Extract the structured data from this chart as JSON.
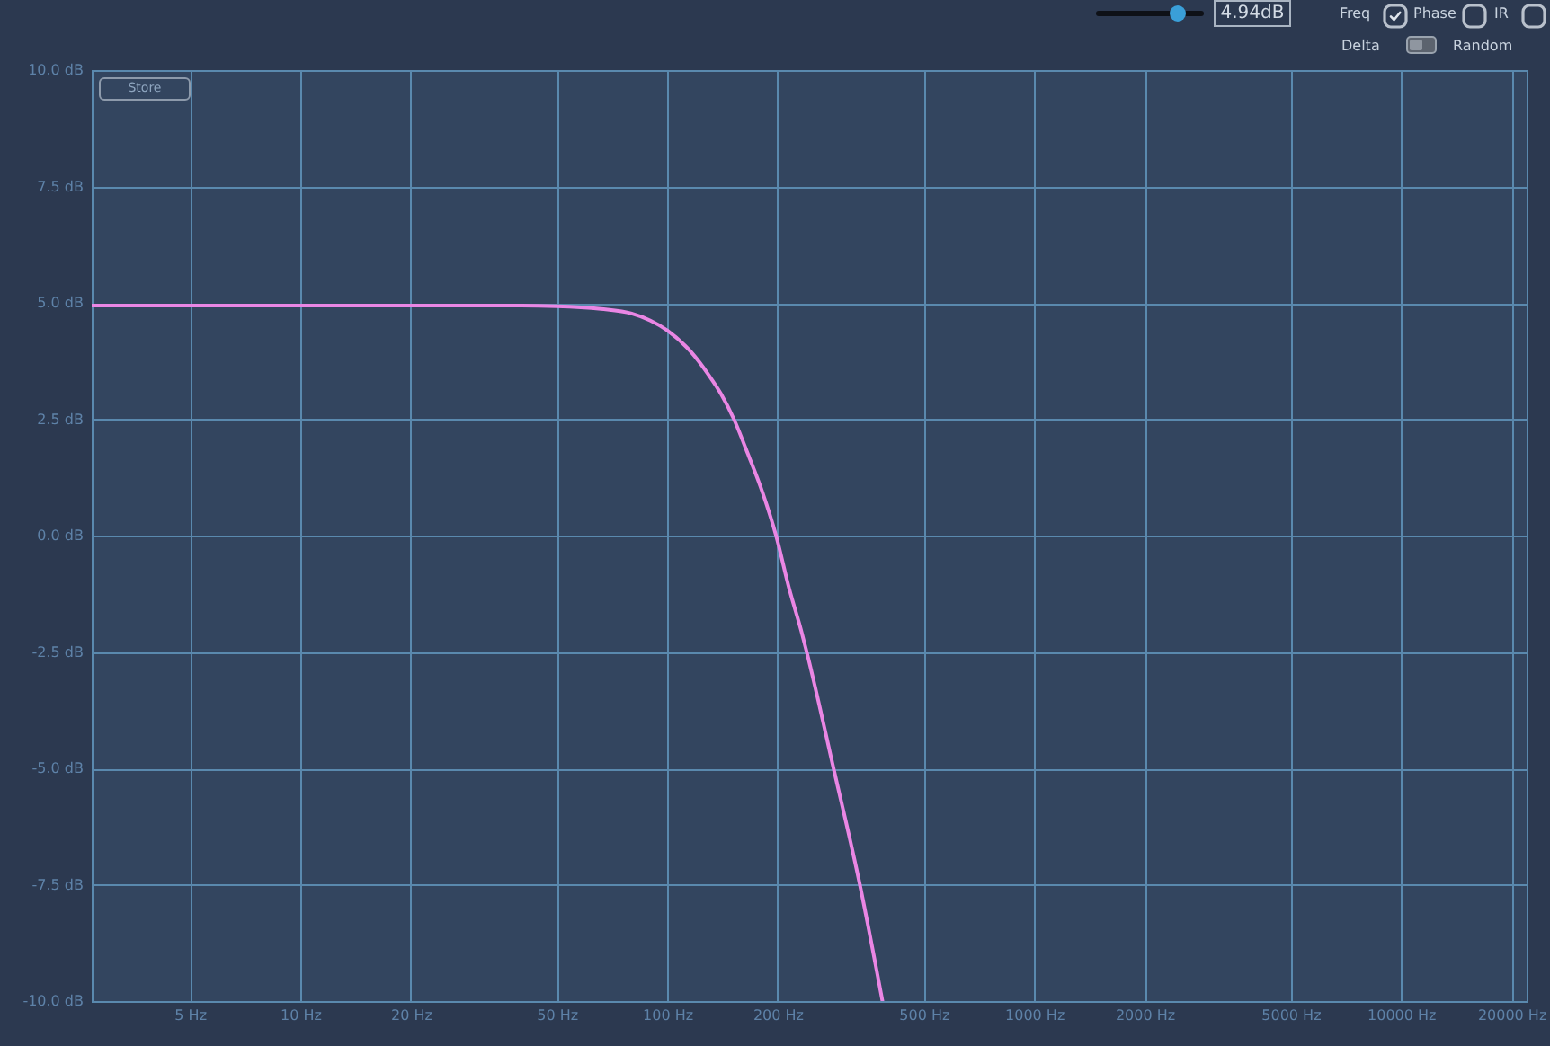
{
  "chart_data": {
    "type": "line",
    "x": [
      2.7,
      5,
      10,
      20,
      30,
      40,
      50,
      66,
      80,
      90,
      100,
      116,
      130,
      140,
      152,
      166,
      182,
      198,
      215,
      232,
      240,
      284,
      335,
      386
    ],
    "series": [
      {
        "color": "#ea86e4",
        "values": [
          4.94,
          4.94,
          4.94,
          4.94,
          4.94,
          4.94,
          4.93,
          4.87,
          4.77,
          4.62,
          4.41,
          3.95,
          3.44,
          3.05,
          2.5,
          1.75,
          0.92,
          0.0,
          -1.14,
          -2.05,
          -2.5,
          -5.0,
          -7.5,
          -10.0
        ]
      }
    ],
    "xlim": [
      2.7,
      22000
    ],
    "ylim": [
      -10,
      10
    ],
    "xticks": [
      {
        "value": 5,
        "label": "5 Hz"
      },
      {
        "value": 10,
        "label": "10 Hz"
      },
      {
        "value": 20,
        "label": "20 Hz"
      },
      {
        "value": 50,
        "label": "50 Hz"
      },
      {
        "value": 100,
        "label": "100 Hz"
      },
      {
        "value": 200,
        "label": "200 Hz"
      },
      {
        "value": 500,
        "label": "500 Hz"
      },
      {
        "value": 1000,
        "label": "1000 Hz"
      },
      {
        "value": 2000,
        "label": "2000 Hz"
      },
      {
        "value": 5000,
        "label": "5000 Hz"
      },
      {
        "value": 10000,
        "label": "10000 Hz"
      },
      {
        "value": 20000,
        "label": "20000 Hz"
      }
    ],
    "yticks": [
      {
        "value": 10,
        "label": "10.0 dB"
      },
      {
        "value": 7.5,
        "label": "7.5 dB"
      },
      {
        "value": 5,
        "label": "5.0 dB"
      },
      {
        "value": 2.5,
        "label": "2.5 dB"
      },
      {
        "value": 0,
        "label": "0.0 dB"
      },
      {
        "value": -2.5,
        "label": "-2.5 dB"
      },
      {
        "value": -5,
        "label": "-5.0 dB"
      },
      {
        "value": -7.5,
        "label": "-7.5 dB"
      },
      {
        "value": -10,
        "label": "-10.0 dB"
      }
    ],
    "log": "x",
    "grid": true,
    "annotations": [
      "4.94dB",
      "Freq",
      "Phase",
      "IR",
      "Delta",
      "Random",
      "Store"
    ]
  }
}
